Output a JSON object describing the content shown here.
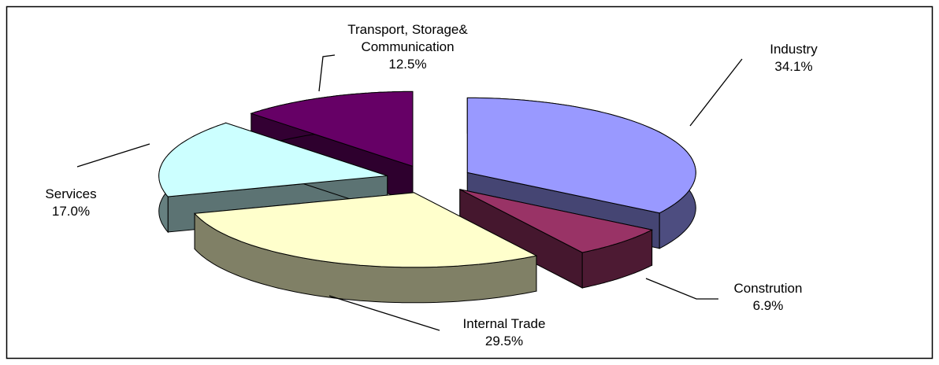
{
  "chart_data": {
    "type": "pie3d",
    "categories": [
      "Industry",
      "Constrution",
      "Internal Trade",
      "Services",
      "Transport, Storage& Communication"
    ],
    "values": [
      34.1,
      6.9,
      29.5,
      17.0,
      12.5
    ],
    "value_labels": [
      "34.1%",
      "6.9%",
      "29.5%",
      "17.0%",
      "12.5%"
    ],
    "colors": [
      "#9999ff",
      "#993366",
      "#ffffcc",
      "#ccffff",
      "#660066"
    ]
  }
}
